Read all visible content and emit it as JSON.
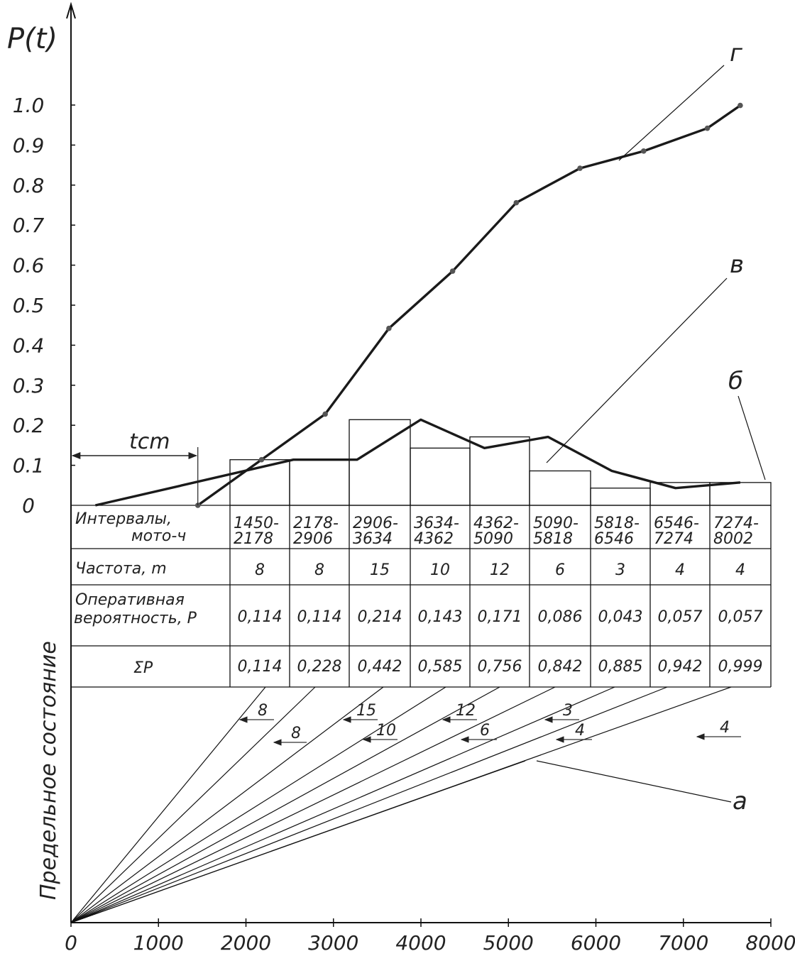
{
  "chart_data": {
    "type": "line",
    "ylabel": "P(t)",
    "side_label": "Предельное состояние",
    "ylim": [
      0,
      1.0
    ],
    "xlim": [
      0,
      8000
    ],
    "y_ticks": [
      "0",
      "0.1",
      "0.2",
      "0.3",
      "0.4",
      "0.5",
      "0.6",
      "0.7",
      "0.8",
      "0.9",
      "1.0"
    ],
    "x_ticks": [
      "0",
      "1000",
      "2000",
      "3000",
      "4000",
      "5000",
      "6000",
      "7000",
      "8000"
    ],
    "annotations": {
      "t_cm": "tcm",
      "t_cm_value": 1450,
      "curve_g": "г",
      "curve_v": "в",
      "curve_b": "б",
      "curve_a": "а"
    },
    "histogram": {
      "bins": [
        [
          1450,
          2178
        ],
        [
          2178,
          2906
        ],
        [
          2906,
          3634
        ],
        [
          3634,
          4362
        ],
        [
          4362,
          5090
        ],
        [
          5090,
          5818
        ],
        [
          5818,
          6546
        ],
        [
          6546,
          7274
        ],
        [
          7274,
          8002
        ]
      ],
      "values": [
        0.114,
        0.114,
        0.214,
        0.143,
        0.171,
        0.086,
        0.043,
        0.057,
        0.057
      ]
    },
    "series": [
      {
        "x": [
          1450,
          2178,
          2906,
          3634,
          4362,
          5090,
          5818,
          6546,
          7274,
          8002
        ],
        "values": [
          0,
          0.114,
          0.114,
          0.214,
          0.143,
          0.171,
          0.086,
          0.043,
          0.057,
          0.057
        ]
      },
      {
        "x": [
          1450,
          2178,
          2906,
          3634,
          4362,
          5090,
          5818,
          6546,
          7274,
          8002
        ],
        "values": [
          0,
          0.114,
          0.228,
          0.442,
          0.585,
          0.756,
          0.842,
          0.885,
          0.942,
          0.999
        ]
      }
    ],
    "table": {
      "row_labels": [
        [
          "Интервалы,",
          "мото-ч"
        ],
        [
          "Частота, m"
        ],
        [
          "Оперативная",
          "вероятность, P"
        ],
        [
          "ΣP"
        ]
      ],
      "intervals": [
        [
          "1450-",
          "2178"
        ],
        [
          "2178-",
          "2906"
        ],
        [
          "2906-",
          "3634"
        ],
        [
          "3634-",
          "4362"
        ],
        [
          "4362-",
          "5090"
        ],
        [
          "5090-",
          "5818"
        ],
        [
          "5818-",
          "6546"
        ],
        [
          "6546-",
          "7274"
        ],
        [
          "7274-",
          "8002"
        ]
      ],
      "frequency": [
        "8",
        "8",
        "15",
        "10",
        "12",
        "6",
        "3",
        "4",
        "4"
      ],
      "probability": [
        "0,114",
        "0,114",
        "0,214",
        "0,143",
        "0,171",
        "0,086",
        "0,043",
        "0,057",
        "0,057"
      ],
      "cumulative": [
        "0,114",
        "0,228",
        "0,442",
        "0,585",
        "0,756",
        "0,842",
        "0,885",
        "0,942",
        "0,999"
      ]
    },
    "arrow_labels": [
      "8",
      "8",
      "15",
      "10",
      "12",
      "6",
      "3",
      "4",
      "4"
    ]
  }
}
